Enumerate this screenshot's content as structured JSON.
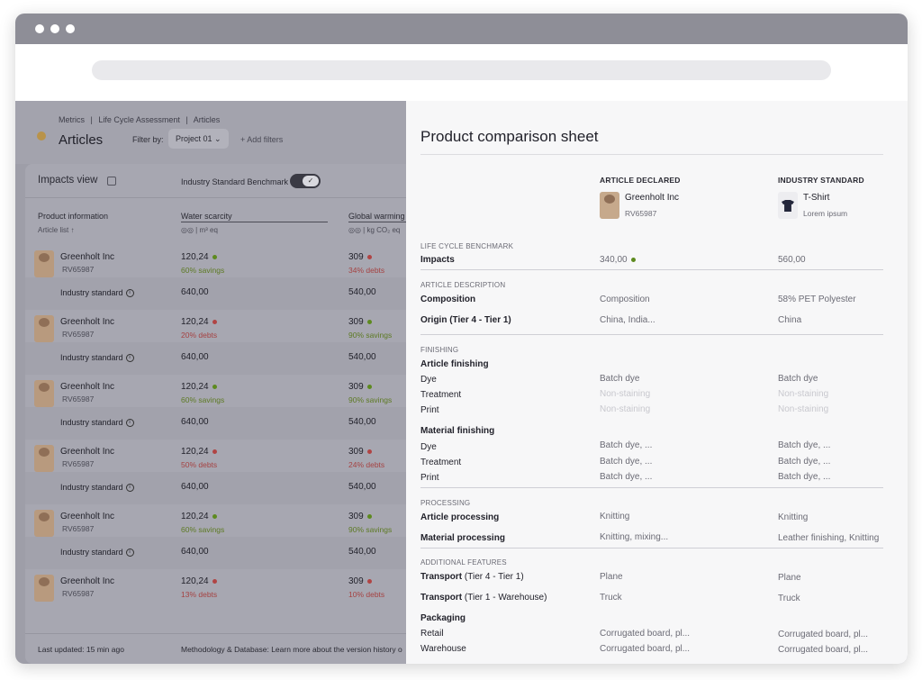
{
  "breadcrumb": [
    "Metrics",
    "|",
    "Life Cycle Assessment",
    "|",
    "Articles"
  ],
  "page_title": "Articles",
  "filter": {
    "label": "Filter by:",
    "chip": "Project 01",
    "add": "+ Add filters"
  },
  "impacts": {
    "title": "Impacts view",
    "benchmark_label": "Industry Standard Benchmark",
    "toggle_mark": "✓"
  },
  "columns": {
    "product": "Product information",
    "product_sub": "Article list ↑",
    "water": "Water scarcity",
    "water_unit": "m³ eq",
    "global": "Global warming",
    "global_unit": "kg CO₂ eq"
  },
  "rows": [
    {
      "name": "Greenholt Inc",
      "code": "RV65987",
      "water": "120,24",
      "water_dot": "green",
      "water_sub": "60% savings",
      "water_cls": "green",
      "gw": "309",
      "gw_dot": "red",
      "gw_sub": "34% debts",
      "gw_cls": "red",
      "std_label": "Industry standard",
      "std_water": "640,00",
      "std_gw": "540,00"
    },
    {
      "name": "Greenholt Inc",
      "code": "RV65987",
      "water": "120,24",
      "water_dot": "red",
      "water_sub": "20% debts",
      "water_cls": "red",
      "gw": "309",
      "gw_dot": "green",
      "gw_sub": "90% savings",
      "gw_cls": "green",
      "std_label": "Industry standard",
      "std_water": "640,00",
      "std_gw": "540,00"
    },
    {
      "name": "Greenholt Inc",
      "code": "RV65987",
      "water": "120,24",
      "water_dot": "green",
      "water_sub": "60% savings",
      "water_cls": "green",
      "gw": "309",
      "gw_dot": "green",
      "gw_sub": "90% savings",
      "gw_cls": "green",
      "std_label": "Industry standard",
      "std_water": "640,00",
      "std_gw": "540,00"
    },
    {
      "name": "Greenholt Inc",
      "code": "RV65987",
      "water": "120,24",
      "water_dot": "red",
      "water_sub": "50% debts",
      "water_cls": "red",
      "gw": "309",
      "gw_dot": "red",
      "gw_sub": "24% debts",
      "gw_cls": "red",
      "std_label": "Industry standard",
      "std_water": "640,00",
      "std_gw": "540,00"
    },
    {
      "name": "Greenholt Inc",
      "code": "RV65987",
      "water": "120,24",
      "water_dot": "green",
      "water_sub": "60% savings",
      "water_cls": "green",
      "gw": "309",
      "gw_dot": "green",
      "gw_sub": "90% savings",
      "gw_cls": "green",
      "std_label": "Industry standard",
      "std_water": "640,00",
      "std_gw": "540,00"
    },
    {
      "name": "Greenholt Inc",
      "code": "RV65987",
      "water": "120,24",
      "water_dot": "red",
      "water_sub": "13% debts",
      "water_cls": "red",
      "gw": "309",
      "gw_dot": "red",
      "gw_sub": "10% debts",
      "gw_cls": "red"
    }
  ],
  "footer": {
    "updated_label": "Last updated:",
    "updated_value": "15 min ago",
    "methodology": "Methodology & Database:",
    "learn": "Learn more about the version history o"
  },
  "panel": {
    "title": "Product comparison sheet",
    "col1_head": "ARTICLE DECLARED",
    "col2_head": "INDUSTRY STANDARD",
    "col1_name": "Greenholt Inc",
    "col1_sub": "RV65987",
    "col2_name": "T-Shirt",
    "col2_sub": "Lorem ipsum",
    "sec_lcb": "LIFE CYCLE BENCHMARK",
    "impacts_label": "Impacts",
    "impacts_c1": "340,00",
    "impacts_c2": "560,00",
    "sec_desc": "ARTICLE DESCRIPTION",
    "composition_label": "Composition",
    "composition_c1": "Composition",
    "composition_c2": "58% PET Polyester",
    "origin_label": "Origin (Tier 4 - Tier 1)",
    "origin_c1": "China, India...",
    "origin_c2": "China",
    "sec_finishing": "FINISHING",
    "article_finishing": "Article finishing",
    "af_dye": "Dye",
    "af_dye_c1": "Batch dye",
    "af_dye_c2": "Batch dye",
    "af_treat": "Treatment",
    "af_treat_c1": "Non-staining",
    "af_treat_c2": "Non-staining",
    "af_print": "Print",
    "af_print_c1": "Non-staining",
    "af_print_c2": "Non-staining",
    "material_finishing": "Material finishing",
    "mf_dye": "Dye",
    "mf_dye_c1": "Batch dye, ...",
    "mf_dye_c2": "Batch dye, ...",
    "mf_treat": "Treatment",
    "mf_treat_c1": "Batch dye, ...",
    "mf_treat_c2": "Batch dye, ...",
    "mf_print": "Print",
    "mf_print_c1": "Batch dye, ...",
    "mf_print_c2": "Batch dye, ...",
    "sec_processing": "PROCESSING",
    "ap_label": "Article processing",
    "ap_c1": "Knitting",
    "ap_c2": "Knitting",
    "mp_label": "Material processing",
    "mp_c1": "Knitting, mixing...",
    "mp_c2": "Leather finishing, Knitting",
    "sec_additional": "ADDITIONAL FEATURES",
    "t1_label": "Transport",
    "t1_extra": "(Tier 4 - Tier 1)",
    "t1_c1": "Plane",
    "t1_c2": "Plane",
    "t2_label": "Transport",
    "t2_extra": "(Tier 1 - Warehouse)",
    "t2_c1": "Truck",
    "t2_c2": "Truck",
    "packaging": "Packaging",
    "retail_label": "Retail",
    "retail_c1": "Corrugated board, pl...",
    "retail_c2": "Corrugated board, pl...",
    "warehouse_label": "Warehouse",
    "warehouse_c1": "Corrugated board, pl...",
    "warehouse_c2": "Corrugated board, pl..."
  }
}
